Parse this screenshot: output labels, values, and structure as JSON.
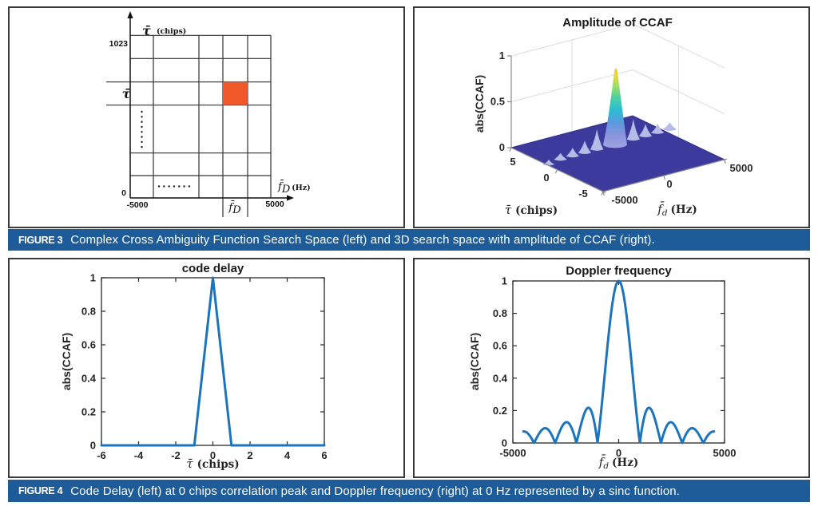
{
  "colors": {
    "caption_bar": "#1e5c99",
    "caption_text": "#ffffff",
    "matlab_line_blue": "#1b74bc",
    "highlight_orange": "#f1592a",
    "surface_base_indigo": "#3c3a9c",
    "peak_tip_yellow": "#f8c331"
  },
  "figure3": {
    "caption_label": "FIGURE 3",
    "caption_text": "Complex Cross Ambiguity Function Search Space (left) and 3D search space with amplitude of CCAF (right).",
    "search_grid": {
      "y_axis_symbol": "τ̄",
      "y_axis_unit": "(chips)",
      "y_top_tick": "1023",
      "y_bottom_tick": "0",
      "row_label": "τ̄",
      "x_left_tick": "-5000",
      "x_right_tick": "5000",
      "x_axis_symbol": "f̄",
      "x_axis_sub": "D",
      "x_axis_unit": "(Hz)",
      "col_label_symbol": "f̄",
      "col_label_sub": "D",
      "highlight_color": "#f1592a"
    }
  },
  "figure4": {
    "caption_label": "FIGURE 4",
    "caption_text": "Code Delay (left) at 0 chips correlation peak and Doppler frequency (right) at 0 Hz represented by a sinc function."
  },
  "chart_data": [
    {
      "type": "surface",
      "title": "Amplitude of CCAF",
      "zlabel": "abs(CCAF)",
      "z_ticks": [
        "1",
        "0.5",
        "0"
      ],
      "tau_label_sym": "τ̄",
      "tau_label_unit": "(chips)",
      "tau_ticks": [
        "5",
        "0",
        "-5"
      ],
      "fd_label_sym": "f̄",
      "fd_label_sub": "d",
      "fd_label_unit": "(Hz)",
      "fd_ticks": [
        "-5000",
        "0",
        "5000"
      ],
      "zlim": [
        0,
        1
      ],
      "tau_lim_chips": [
        -5,
        5
      ],
      "fd_lim_hz": [
        -5000,
        5000
      ],
      "peak": {
        "tau_chips": 0,
        "fd_hz": 0,
        "amplitude": 1
      },
      "sidelobe_fd_hz": [
        1500,
        2500,
        3500,
        4500
      ],
      "sidelobe_amplitudes": [
        0.22,
        0.13,
        0.09,
        0.07
      ],
      "colormap": "parula",
      "base_color": "#3c3a9c"
    },
    {
      "type": "line",
      "title": "code delay",
      "xlabel_sym": "τ̄",
      "xlabel_unit": "(chips)",
      "ylabel": "abs(CCAF)",
      "xlim": [
        -6,
        6
      ],
      "ylim": [
        0,
        1
      ],
      "xticks": [
        -6,
        -4,
        -2,
        0,
        2,
        4,
        6
      ],
      "yticks": [
        0,
        0.2,
        0.4,
        0.6,
        0.8,
        1
      ],
      "points": [
        [
          -6,
          0
        ],
        [
          -1,
          0
        ],
        [
          0,
          1
        ],
        [
          1,
          0
        ],
        [
          6,
          0
        ]
      ],
      "line_color": "#1b74bc",
      "line_width": 3
    },
    {
      "type": "line",
      "title": "Doppler frequency",
      "xlabel_sym": "f̄",
      "xlabel_sub": "d",
      "xlabel_unit": "(Hz)",
      "ylabel": "abs(CCAF)",
      "xlim": [
        -5000,
        5000
      ],
      "ylim": [
        0,
        1
      ],
      "xticks": [
        -5000,
        0,
        5000
      ],
      "yticks": [
        0,
        0.2,
        0.4,
        0.6,
        0.8,
        1
      ],
      "function": {
        "kind": "abs_sinc",
        "first_null_hz": 1000,
        "x_range": [
          -4500,
          4500
        ],
        "samples": 600
      },
      "line_color": "#1b74bc",
      "line_width": 3
    }
  ]
}
